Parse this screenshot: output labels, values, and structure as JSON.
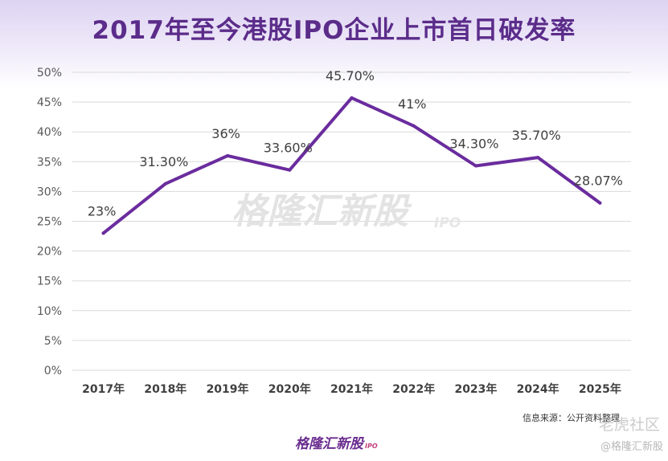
{
  "title": "2017年至今港股IPO企业上市首日破发率",
  "watermark": "格隆汇新股",
  "watermark_suffix": "IPO",
  "source_note": "信息来源：公开资料整理",
  "logo_text": "格隆汇新股",
  "logo_suffix": "IPO",
  "corner_watermark": "老虎社区",
  "corner_watermark_sub": "@格隆汇新股",
  "colors": {
    "line": "#6a2c9e",
    "title": "#5b2c8a",
    "grid": "#d9d9d9"
  },
  "chart_data": {
    "type": "line",
    "title": "2017年至今港股IPO企业上市首日破发率",
    "categories": [
      "2017年",
      "2018年",
      "2019年",
      "2020年",
      "2021年",
      "2022年",
      "2023年",
      "2024年",
      "2025年"
    ],
    "series": [
      {
        "values": [
          23,
          31.3,
          36,
          33.6,
          45.7,
          41,
          34.3,
          35.7,
          28.07
        ]
      }
    ],
    "data_labels": [
      "23%",
      "31.30%",
      "36%",
      "33.60%",
      "45.70%",
      "41%",
      "34.30%",
      "35.70%",
      "28.07%"
    ],
    "y_ticks": [
      "0%",
      "5%",
      "10%",
      "15%",
      "20%",
      "25%",
      "30%",
      "35%",
      "40%",
      "45%",
      "50%"
    ],
    "ylim": [
      0,
      50
    ],
    "grid": true,
    "legend": "none"
  }
}
